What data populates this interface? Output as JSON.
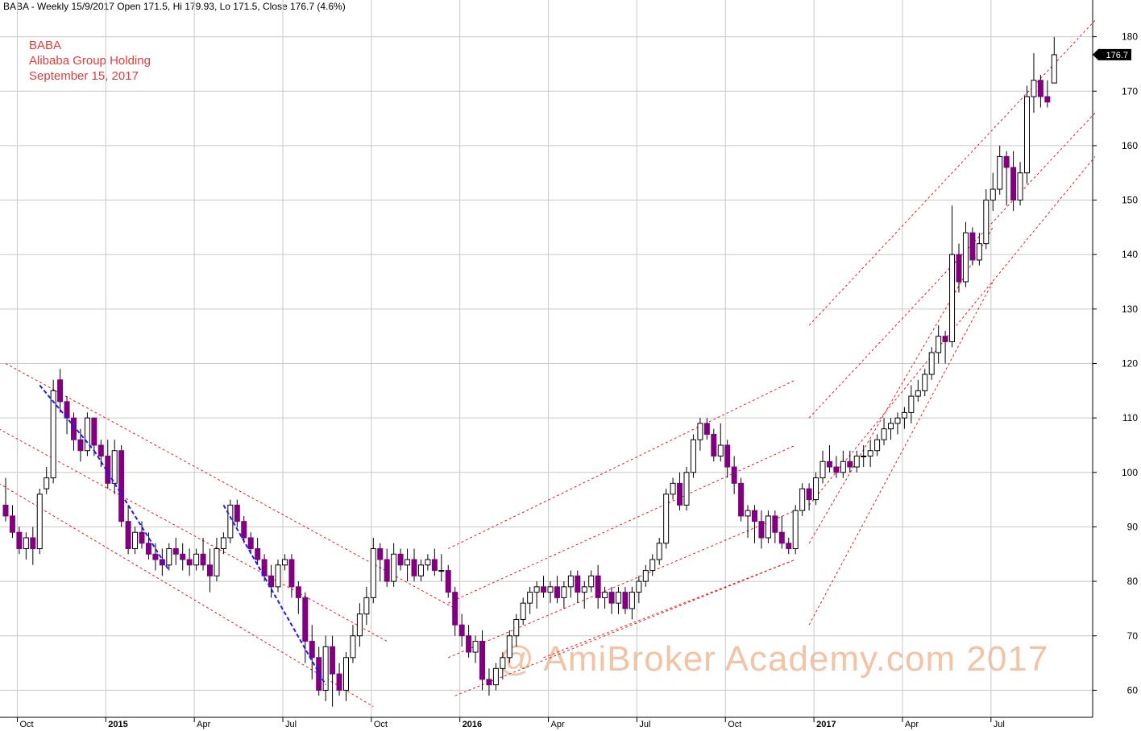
{
  "header": {
    "text": "BABA - Weekly 15/9/2017 Open 171.5, Hi 179.93, Lo 171.5, Close 176.7 (4.6%)"
  },
  "annotations": {
    "line1": "BABA",
    "line2": "Alibaba Group Holding",
    "line3": "September 15, 2017"
  },
  "watermark": "@ AmiBroker Academy.com 2017",
  "colors": {
    "down_candle": "#800080",
    "up_candle": "#ffffff",
    "candle_outline": "#000000",
    "channel": "#e02020",
    "trend": "#1a1aff",
    "grid": "#c8c8c8",
    "annotation": "#e03c3c",
    "watermark": "#f2c3a4",
    "price_tag_bg": "#000000",
    "price_tag_text": "#ffffff"
  },
  "chart_data": {
    "type": "candlestick",
    "timeframe": "weekly",
    "ylim": [
      55,
      182
    ],
    "yticks": [
      60,
      70,
      80,
      90,
      100,
      110,
      120,
      130,
      140,
      150,
      160,
      170,
      180
    ],
    "last_price": "176.7",
    "x_labels": [
      {
        "text": "Oct",
        "idx": 1,
        "bold": false
      },
      {
        "text": "2015",
        "idx": 14,
        "bold": true
      },
      {
        "text": "Apr",
        "idx": 27,
        "bold": false
      },
      {
        "text": "Jul",
        "idx": 40,
        "bold": false
      },
      {
        "text": "Oct",
        "idx": 53,
        "bold": false
      },
      {
        "text": "2016",
        "idx": 66,
        "bold": true
      },
      {
        "text": "Apr",
        "idx": 79,
        "bold": false
      },
      {
        "text": "Jul",
        "idx": 92,
        "bold": false
      },
      {
        "text": "Oct",
        "idx": 105,
        "bold": false
      },
      {
        "text": "2017",
        "idx": 118,
        "bold": true
      },
      {
        "text": "Apr",
        "idx": 131,
        "bold": false
      },
      {
        "text": "Jul",
        "idx": 144,
        "bold": false
      }
    ],
    "candles": [
      [
        94,
        99,
        91,
        92
      ],
      [
        92,
        94,
        88,
        89
      ],
      [
        89,
        90,
        85,
        86
      ],
      [
        86,
        89,
        84,
        88
      ],
      [
        88,
        90,
        83,
        86
      ],
      [
        86,
        97,
        85,
        96
      ],
      [
        97,
        101,
        96,
        99
      ],
      [
        99,
        117,
        98,
        115
      ],
      [
        117,
        119,
        111,
        113
      ],
      [
        113,
        114,
        107,
        110
      ],
      [
        110,
        111,
        104,
        106
      ],
      [
        106,
        108,
        102,
        104
      ],
      [
        104,
        111,
        103,
        110
      ],
      [
        110,
        110,
        103,
        105
      ],
      [
        105,
        106,
        101,
        103
      ],
      [
        103,
        106,
        97,
        98
      ],
      [
        98,
        106,
        96,
        104
      ],
      [
        104,
        105,
        90,
        91
      ],
      [
        91,
        94,
        85,
        86
      ],
      [
        86,
        90,
        85,
        89
      ],
      [
        89,
        91,
        86,
        87
      ],
      [
        87,
        89,
        84,
        85
      ],
      [
        85,
        87,
        82,
        84
      ],
      [
        84,
        86,
        81,
        83
      ],
      [
        83,
        87,
        82,
        86
      ],
      [
        86,
        88,
        83,
        85
      ],
      [
        85,
        87,
        82,
        84
      ],
      [
        84,
        86,
        81,
        83
      ],
      [
        83,
        86,
        82,
        85
      ],
      [
        85,
        88,
        82,
        83
      ],
      [
        83,
        86,
        78,
        81
      ],
      [
        81,
        88,
        80,
        86
      ],
      [
        86,
        89,
        85,
        88
      ],
      [
        88,
        95,
        87,
        94
      ],
      [
        94,
        95,
        90,
        91
      ],
      [
        91,
        92,
        87,
        88
      ],
      [
        88,
        89,
        85,
        86
      ],
      [
        86,
        88,
        83,
        84
      ],
      [
        84,
        85,
        80,
        81
      ],
      [
        81,
        83,
        77,
        79
      ],
      [
        79,
        84,
        78,
        83
      ],
      [
        83,
        85,
        82,
        84
      ],
      [
        84,
        85,
        77,
        79
      ],
      [
        79,
        80,
        74,
        77
      ],
      [
        77,
        78,
        65,
        69
      ],
      [
        69,
        72,
        62,
        66
      ],
      [
        66,
        68,
        59,
        60
      ],
      [
        60,
        70,
        58,
        68
      ],
      [
        68,
        70,
        57,
        63
      ],
      [
        63,
        65,
        59,
        60
      ],
      [
        60,
        67,
        58,
        66
      ],
      [
        66,
        72,
        65,
        70
      ],
      [
        70,
        76,
        68,
        74
      ],
      [
        74,
        79,
        72,
        77
      ],
      [
        77,
        88,
        76,
        86
      ],
      [
        86,
        87,
        80,
        84
      ],
      [
        84,
        86,
        79,
        80
      ],
      [
        80,
        87,
        79,
        85
      ],
      [
        85,
        86,
        82,
        83
      ],
      [
        83,
        86,
        80,
        84
      ],
      [
        84,
        86,
        80,
        81
      ],
      [
        81,
        84,
        80,
        83
      ],
      [
        83,
        85,
        82,
        84
      ],
      [
        84,
        86,
        81,
        82
      ],
      [
        82,
        85,
        80,
        82
      ],
      [
        82,
        83,
        77,
        78
      ],
      [
        78,
        79,
        70,
        72
      ],
      [
        72,
        74,
        68,
        70
      ],
      [
        70,
        72,
        66,
        67
      ],
      [
        67,
        70,
        65,
        69
      ],
      [
        69,
        71,
        60,
        62
      ],
      [
        62,
        64,
        59,
        61
      ],
      [
        61,
        65,
        60,
        64
      ],
      [
        64,
        67,
        62,
        66
      ],
      [
        66,
        71,
        65,
        70
      ],
      [
        70,
        74,
        68,
        73
      ],
      [
        73,
        77,
        72,
        76
      ],
      [
        76,
        79,
        74,
        78
      ],
      [
        78,
        80,
        75,
        79
      ],
      [
        79,
        81,
        77,
        78
      ],
      [
        78,
        80,
        76,
        79
      ],
      [
        79,
        81,
        76,
        77
      ],
      [
        77,
        80,
        75,
        79
      ],
      [
        79,
        82,
        77,
        81
      ],
      [
        81,
        82,
        76,
        78
      ],
      [
        78,
        80,
        75,
        79
      ],
      [
        79,
        82,
        78,
        81
      ],
      [
        81,
        83,
        75,
        77
      ],
      [
        77,
        79,
        75,
        78
      ],
      [
        78,
        79,
        74,
        76
      ],
      [
        76,
        79,
        74,
        78
      ],
      [
        78,
        79,
        74,
        75
      ],
      [
        75,
        79,
        73,
        78
      ],
      [
        78,
        81,
        76,
        80
      ],
      [
        80,
        83,
        79,
        82
      ],
      [
        82,
        85,
        81,
        84
      ],
      [
        84,
        88,
        83,
        87
      ],
      [
        87,
        97,
        86,
        96
      ],
      [
        96,
        99,
        95,
        98
      ],
      [
        98,
        100,
        93,
        94
      ],
      [
        94,
        101,
        93,
        100
      ],
      [
        100,
        107,
        99,
        106
      ],
      [
        106,
        110,
        104,
        109
      ],
      [
        109,
        110,
        106,
        107
      ],
      [
        107,
        108,
        102,
        103
      ],
      [
        103,
        109,
        102,
        105
      ],
      [
        105,
        106,
        99,
        101
      ],
      [
        101,
        103,
        96,
        98
      ],
      [
        98,
        99,
        91,
        92
      ],
      [
        92,
        94,
        88,
        93
      ],
      [
        93,
        94,
        87,
        91
      ],
      [
        91,
        93,
        86,
        88
      ],
      [
        88,
        93,
        87,
        92
      ],
      [
        92,
        93,
        87,
        89
      ],
      [
        89,
        92,
        86,
        87
      ],
      [
        87,
        88,
        85,
        86
      ],
      [
        86,
        94,
        85,
        93
      ],
      [
        93,
        98,
        92,
        97
      ],
      [
        97,
        98,
        93,
        95
      ],
      [
        95,
        100,
        94,
        99
      ],
      [
        99,
        104,
        98,
        102
      ],
      [
        102,
        105,
        100,
        101
      ],
      [
        101,
        103,
        99,
        100
      ],
      [
        100,
        104,
        99,
        102
      ],
      [
        102,
        104,
        100,
        101
      ],
      [
        101,
        104,
        100,
        103
      ],
      [
        103,
        105,
        101,
        103
      ],
      [
        103,
        106,
        101,
        104
      ],
      [
        104,
        107,
        103,
        106
      ],
      [
        106,
        110,
        105,
        108
      ],
      [
        108,
        110,
        106,
        109
      ],
      [
        109,
        111,
        107,
        110
      ],
      [
        110,
        112,
        108,
        111
      ],
      [
        111,
        116,
        109,
        114
      ],
      [
        114,
        117,
        113,
        115
      ],
      [
        115,
        119,
        114,
        118
      ],
      [
        118,
        123,
        117,
        122
      ],
      [
        122,
        127,
        120,
        125
      ],
      [
        125,
        126,
        120,
        124
      ],
      [
        124,
        149,
        123,
        140
      ],
      [
        140,
        142,
        133,
        135
      ],
      [
        135,
        146,
        134,
        144
      ],
      [
        144,
        145,
        138,
        139
      ],
      [
        139,
        144,
        138,
        142
      ],
      [
        142,
        152,
        141,
        150
      ],
      [
        150,
        155,
        148,
        152
      ],
      [
        152,
        160,
        151,
        158
      ],
      [
        158,
        159,
        149,
        156
      ],
      [
        156,
        159,
        148,
        150
      ],
      [
        150,
        157,
        149,
        155
      ],
      [
        155,
        171,
        153,
        169
      ],
      [
        169,
        177,
        166,
        172
      ],
      [
        172,
        173,
        167,
        169
      ],
      [
        169,
        172,
        167,
        168
      ],
      [
        171.5,
        179.93,
        171.5,
        176.7
      ]
    ],
    "trend_lines": [
      {
        "points": [
          [
            5,
            116
          ],
          [
            13,
            104
          ]
        ],
        "color": "#1a1aff"
      },
      {
        "points": [
          [
            13,
            104
          ],
          [
            24,
            82
          ]
        ],
        "color": "#1a1aff"
      },
      {
        "points": [
          [
            32,
            94
          ],
          [
            47,
            61
          ]
        ],
        "color": "#1a1aff"
      }
    ],
    "channels": [
      {
        "points": [
          [
            0,
            120
          ],
          [
            66,
            75
          ]
        ]
      },
      {
        "points": [
          [
            -1,
            108
          ],
          [
            56,
            69
          ]
        ]
      },
      {
        "points": [
          [
            -1,
            98
          ],
          [
            54,
            57
          ]
        ]
      },
      {
        "points": [
          [
            65,
            86
          ],
          [
            116,
            117
          ]
        ]
      },
      {
        "points": [
          [
            65,
            76
          ],
          [
            116,
            105
          ]
        ]
      },
      {
        "points": [
          [
            65,
            66
          ],
          [
            116,
            93
          ]
        ]
      },
      {
        "points": [
          [
            66,
            59
          ],
          [
            116,
            84
          ]
        ]
      },
      {
        "points": [
          [
            79,
            66
          ],
          [
            116,
            84
          ]
        ]
      },
      {
        "points": [
          [
            118,
            127
          ],
          [
            160,
            183
          ]
        ]
      },
      {
        "points": [
          [
            118,
            110
          ],
          [
            160,
            166
          ]
        ]
      },
      {
        "points": [
          [
            118,
            94
          ],
          [
            160,
            158
          ]
        ]
      },
      {
        "points": [
          [
            118,
            87
          ],
          [
            145,
            145
          ]
        ]
      },
      {
        "points": [
          [
            118,
            72
          ],
          [
            145,
            135
          ]
        ]
      }
    ]
  }
}
